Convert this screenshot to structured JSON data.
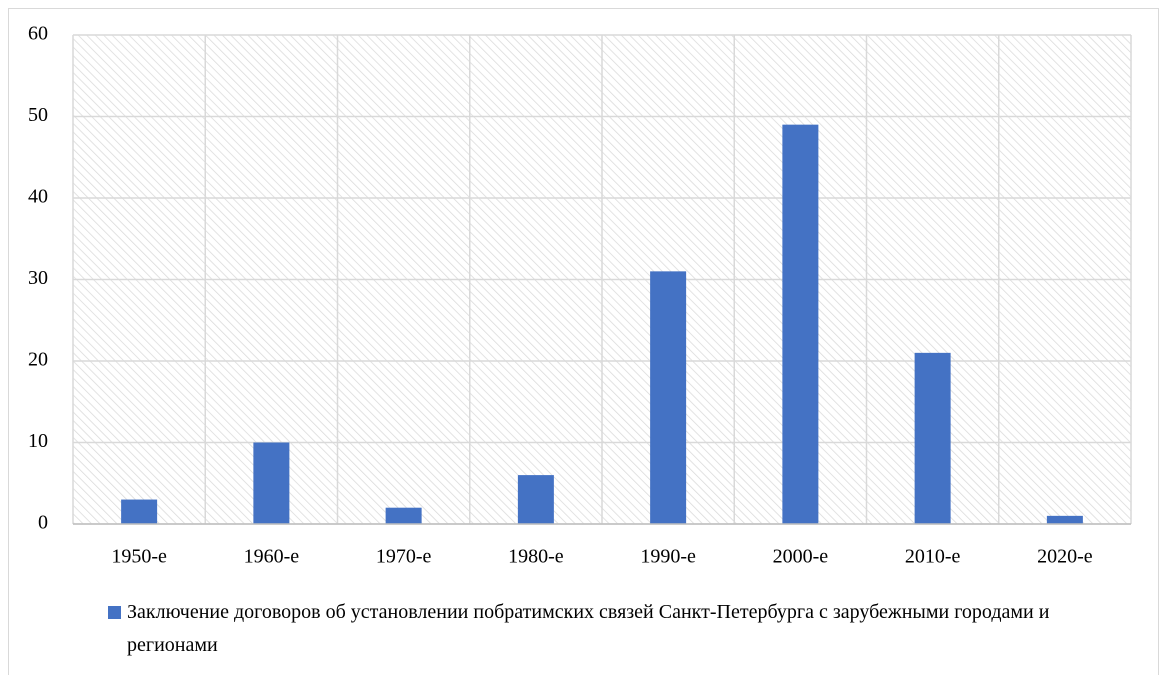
{
  "chart_data": {
    "type": "bar",
    "categories": [
      "1950-е",
      "1960-е",
      "1970-е",
      "1980-е",
      "1990-е",
      "2000-е",
      "2010-е",
      "2020-е"
    ],
    "series": [
      {
        "name": "Заключение договоров об установлении побратимских связей Санкт-Петербурга с зарубежными городами и регионами",
        "color": "#4472c4",
        "values": [
          3,
          10,
          2,
          6,
          31,
          49,
          21,
          1
        ]
      }
    ],
    "ylim": [
      0,
      60
    ],
    "yticks": [
      0,
      10,
      20,
      30,
      40,
      50,
      60
    ],
    "grid": true,
    "legend": "bottom"
  }
}
